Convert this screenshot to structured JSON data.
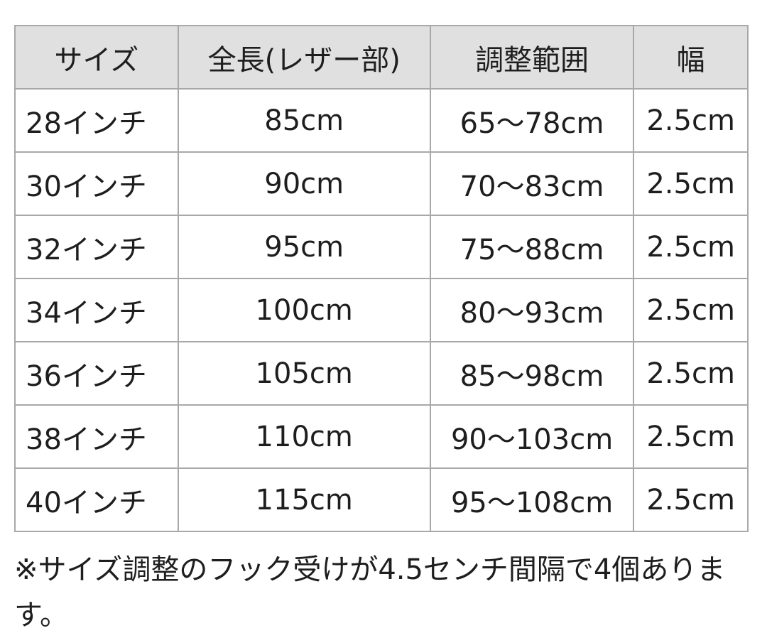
{
  "table": {
    "headers": [
      "サイズ",
      "全長(レザー部)",
      "調整範囲",
      "幅"
    ],
    "rows": [
      [
        "28インチ",
        "85cm",
        "65〜78cm",
        "2.5cm"
      ],
      [
        "30インチ",
        "90cm",
        "70〜83cm",
        "2.5cm"
      ],
      [
        "32インチ",
        "95cm",
        "75〜88cm",
        "2.5cm"
      ],
      [
        "34インチ",
        "100cm",
        "80〜93cm",
        "2.5cm"
      ],
      [
        "36インチ",
        "105cm",
        "85〜98cm",
        "2.5cm"
      ],
      [
        "38インチ",
        "110cm",
        "90〜103cm",
        "2.5cm"
      ],
      [
        "40インチ",
        "115cm",
        "95〜108cm",
        "2.5cm"
      ]
    ]
  },
  "note": "※サイズ調整のフック受けが4.5センチ間隔で4個あります。",
  "colors": {
    "header_bg": "#e0e0e0",
    "border": "#a8a8a8"
  }
}
